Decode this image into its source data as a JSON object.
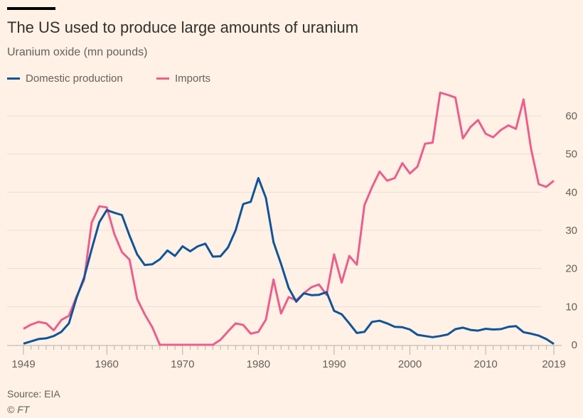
{
  "chart_data": {
    "type": "line",
    "title": "The US used to produce large amounts of uranium",
    "subtitle": "Uranium oxide (mn pounds)",
    "x_start": 1949,
    "x_end": 2019,
    "xticks": [
      1949,
      1960,
      1970,
      1980,
      1990,
      2000,
      2010,
      2019
    ],
    "yticks": [
      0,
      10,
      20,
      30,
      40,
      50,
      60
    ],
    "ylim": [
      0,
      66
    ],
    "legend_placement": "top-left",
    "colors": {
      "Domestic production": "#0f5499",
      "Imports": "#eb5e8d"
    },
    "series": [
      {
        "name": "Domestic production",
        "values": [
          0.3,
          0.9,
          1.5,
          1.7,
          2.3,
          3.4,
          5.6,
          12.3,
          17.6,
          25.0,
          32.1,
          35.3,
          34.6,
          34.0,
          28.6,
          23.7,
          20.9,
          21.1,
          22.4,
          24.7,
          23.3,
          25.8,
          24.5,
          25.8,
          26.5,
          23.1,
          23.2,
          25.5,
          30.0,
          36.9,
          37.5,
          43.7,
          38.5,
          26.9,
          21.2,
          14.9,
          11.3,
          13.5,
          13.0,
          13.1,
          13.8,
          8.9,
          8.0,
          5.6,
          3.1,
          3.4,
          6.0,
          6.3,
          5.6,
          4.7,
          4.6,
          4.0,
          2.6,
          2.3,
          2.0,
          2.3,
          2.7,
          4.1,
          4.5,
          3.9,
          3.7,
          4.2,
          4.0,
          4.1,
          4.7,
          4.9,
          3.3,
          2.9,
          2.4,
          1.5,
          0.2
        ]
      },
      {
        "name": "Imports",
        "values": [
          4.2,
          5.3,
          6.0,
          5.6,
          3.8,
          6.5,
          7.6,
          12.6,
          17.0,
          32.0,
          36.3,
          36.0,
          29.0,
          24.3,
          22.3,
          12.0,
          8.0,
          4.6,
          0,
          0,
          0,
          0,
          0,
          0,
          0,
          0,
          1.3,
          3.5,
          5.6,
          5.2,
          2.9,
          3.4,
          6.6,
          17.1,
          8.2,
          12.5,
          11.7,
          13.5,
          15.1,
          15.8,
          13.1,
          23.7,
          16.3,
          23.3,
          21.0,
          36.6,
          41.3,
          45.4,
          43.0,
          43.7,
          47.6,
          44.9,
          46.7,
          52.7,
          53.0,
          66.1,
          65.5,
          64.8,
          54.1,
          57.1,
          58.9,
          55.3,
          54.4,
          56.3,
          57.5,
          56.6,
          64.3,
          51.3,
          42.1,
          41.4,
          43.0
        ]
      }
    ]
  },
  "source": "Source: EIA",
  "credit": "© FT"
}
